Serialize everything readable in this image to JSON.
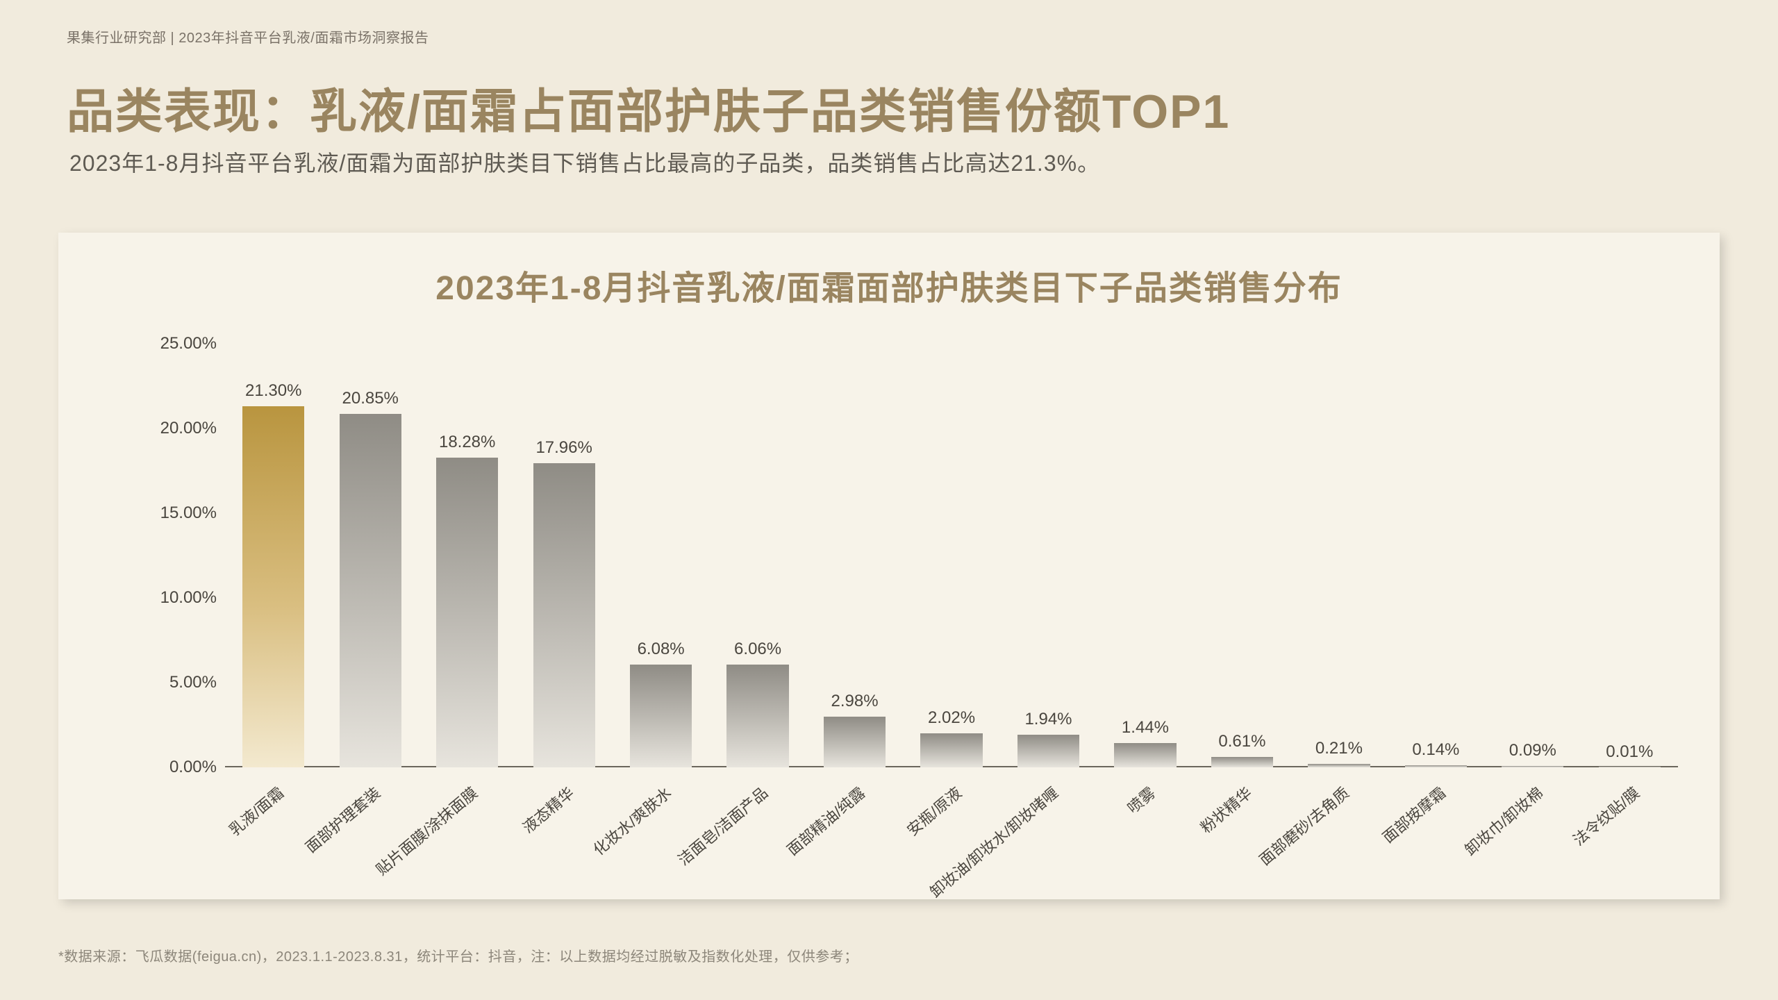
{
  "header": "果集行业研究部 | 2023年抖音平台乳液/面霜市场洞察报告",
  "main_title": "品类表现：乳液/面霜占面部护肤子品类销售份额TOP1",
  "subtitle": "2023年1-8月抖音平台乳液/面霜为面部护肤类目下销售占比最高的子品类，品类销售占比高达21.3%。",
  "chart": {
    "title": "2023年1-8月抖音乳液/面霜面部护肤类目下子品类销售分布",
    "type": "bar",
    "y_max": 25.0,
    "y_tick_step": 5.0,
    "y_ticks": [
      "0.00%",
      "5.00%",
      "10.00%",
      "15.00%",
      "20.00%",
      "25.00%"
    ],
    "label_fontsize": 24,
    "title_fontsize": 48,
    "bar_width_pct": 64,
    "background_color": "#f7f3e9",
    "page_background": "#f1ebdd",
    "axis_color": "#6b665c",
    "text_color": "#4a463f",
    "accent_text_color": "#9a8560",
    "gold_gradient": [
      "#f3e9cf",
      "#d9be80",
      "#b9953f"
    ],
    "gray_gradient": [
      "#e7e4dd",
      "#bfbcb5",
      "#8f8c85"
    ],
    "categories": [
      "乳液/面霜",
      "面部护理套装",
      "贴片面膜/涂抹面膜",
      "液态精华",
      "化妆水/爽肤水",
      "洁面皂/洁面产品",
      "面部精油/纯露",
      "安瓶/原液",
      "卸妆油/卸妆水/卸妆啫喱",
      "喷雾",
      "粉状精华",
      "面部磨砂/去角质",
      "面部按摩霜",
      "卸妆巾/卸妆棉",
      "法令纹贴/膜"
    ],
    "values": [
      21.3,
      20.85,
      18.28,
      17.96,
      6.08,
      6.06,
      2.98,
      2.02,
      1.94,
      1.44,
      0.61,
      0.21,
      0.14,
      0.09,
      0.01
    ],
    "value_labels": [
      "21.30%",
      "20.85%",
      "18.28%",
      "17.96%",
      "6.08%",
      "6.06%",
      "2.98%",
      "2.02%",
      "1.94%",
      "1.44%",
      "0.61%",
      "0.21%",
      "0.14%",
      "0.09%",
      "0.01%"
    ],
    "highlight_index": 0
  },
  "footnote": "*数据来源：飞瓜数据(feigua.cn)，2023.1.1-2023.8.31，统计平台：抖音，注：以上数据均经过脱敏及指数化处理，仅供参考；"
}
